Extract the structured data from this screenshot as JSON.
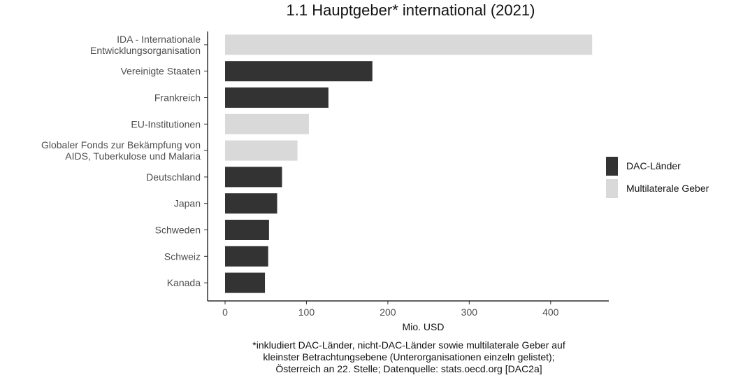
{
  "chart_data": {
    "type": "bar",
    "orientation": "horizontal",
    "title": "1.1 Hauptgeber* international (2021)",
    "xlabel": "Mio. USD",
    "xlim": [
      0,
      460
    ],
    "xticks": [
      0,
      100,
      200,
      300,
      400
    ],
    "grid": false,
    "legend_position": "right",
    "categories": [
      [
        "IDA - Internationale",
        "Entwicklungsorganisation"
      ],
      [
        "Vereinigte Staaten"
      ],
      [
        "Frankreich"
      ],
      [
        "EU-Institutionen"
      ],
      [
        "Globaler Fonds zur Bekämpfung von",
        "AIDS, Tuberkulose und Malaria"
      ],
      [
        "Deutschland"
      ],
      [
        "Japan"
      ],
      [
        "Schweden"
      ],
      [
        "Schweiz"
      ],
      [
        "Kanada"
      ]
    ],
    "values": [
      451,
      181,
      127,
      103,
      89,
      70,
      64,
      54,
      53,
      49
    ],
    "groups": [
      "Multilaterale Geber",
      "DAC-Länder",
      "DAC-Länder",
      "Multilaterale Geber",
      "Multilaterale Geber",
      "DAC-Länder",
      "DAC-Länder",
      "DAC-Länder",
      "DAC-Länder",
      "DAC-Länder"
    ],
    "legend": [
      {
        "name": "DAC-Länder",
        "color": "#333333"
      },
      {
        "name": "Multilaterale Geber",
        "color": "#d9d9d9"
      }
    ],
    "footnote": [
      "*inkludiert DAC-Länder, nicht-DAC-Länder sowie multilaterale Geber auf",
      "kleinster Betrachtungsebene (Unterorganisationen einzeln gelistet);",
      "Österreich an 22. Stelle; Datenquelle: stats.oecd.org [DAC2a]"
    ]
  }
}
